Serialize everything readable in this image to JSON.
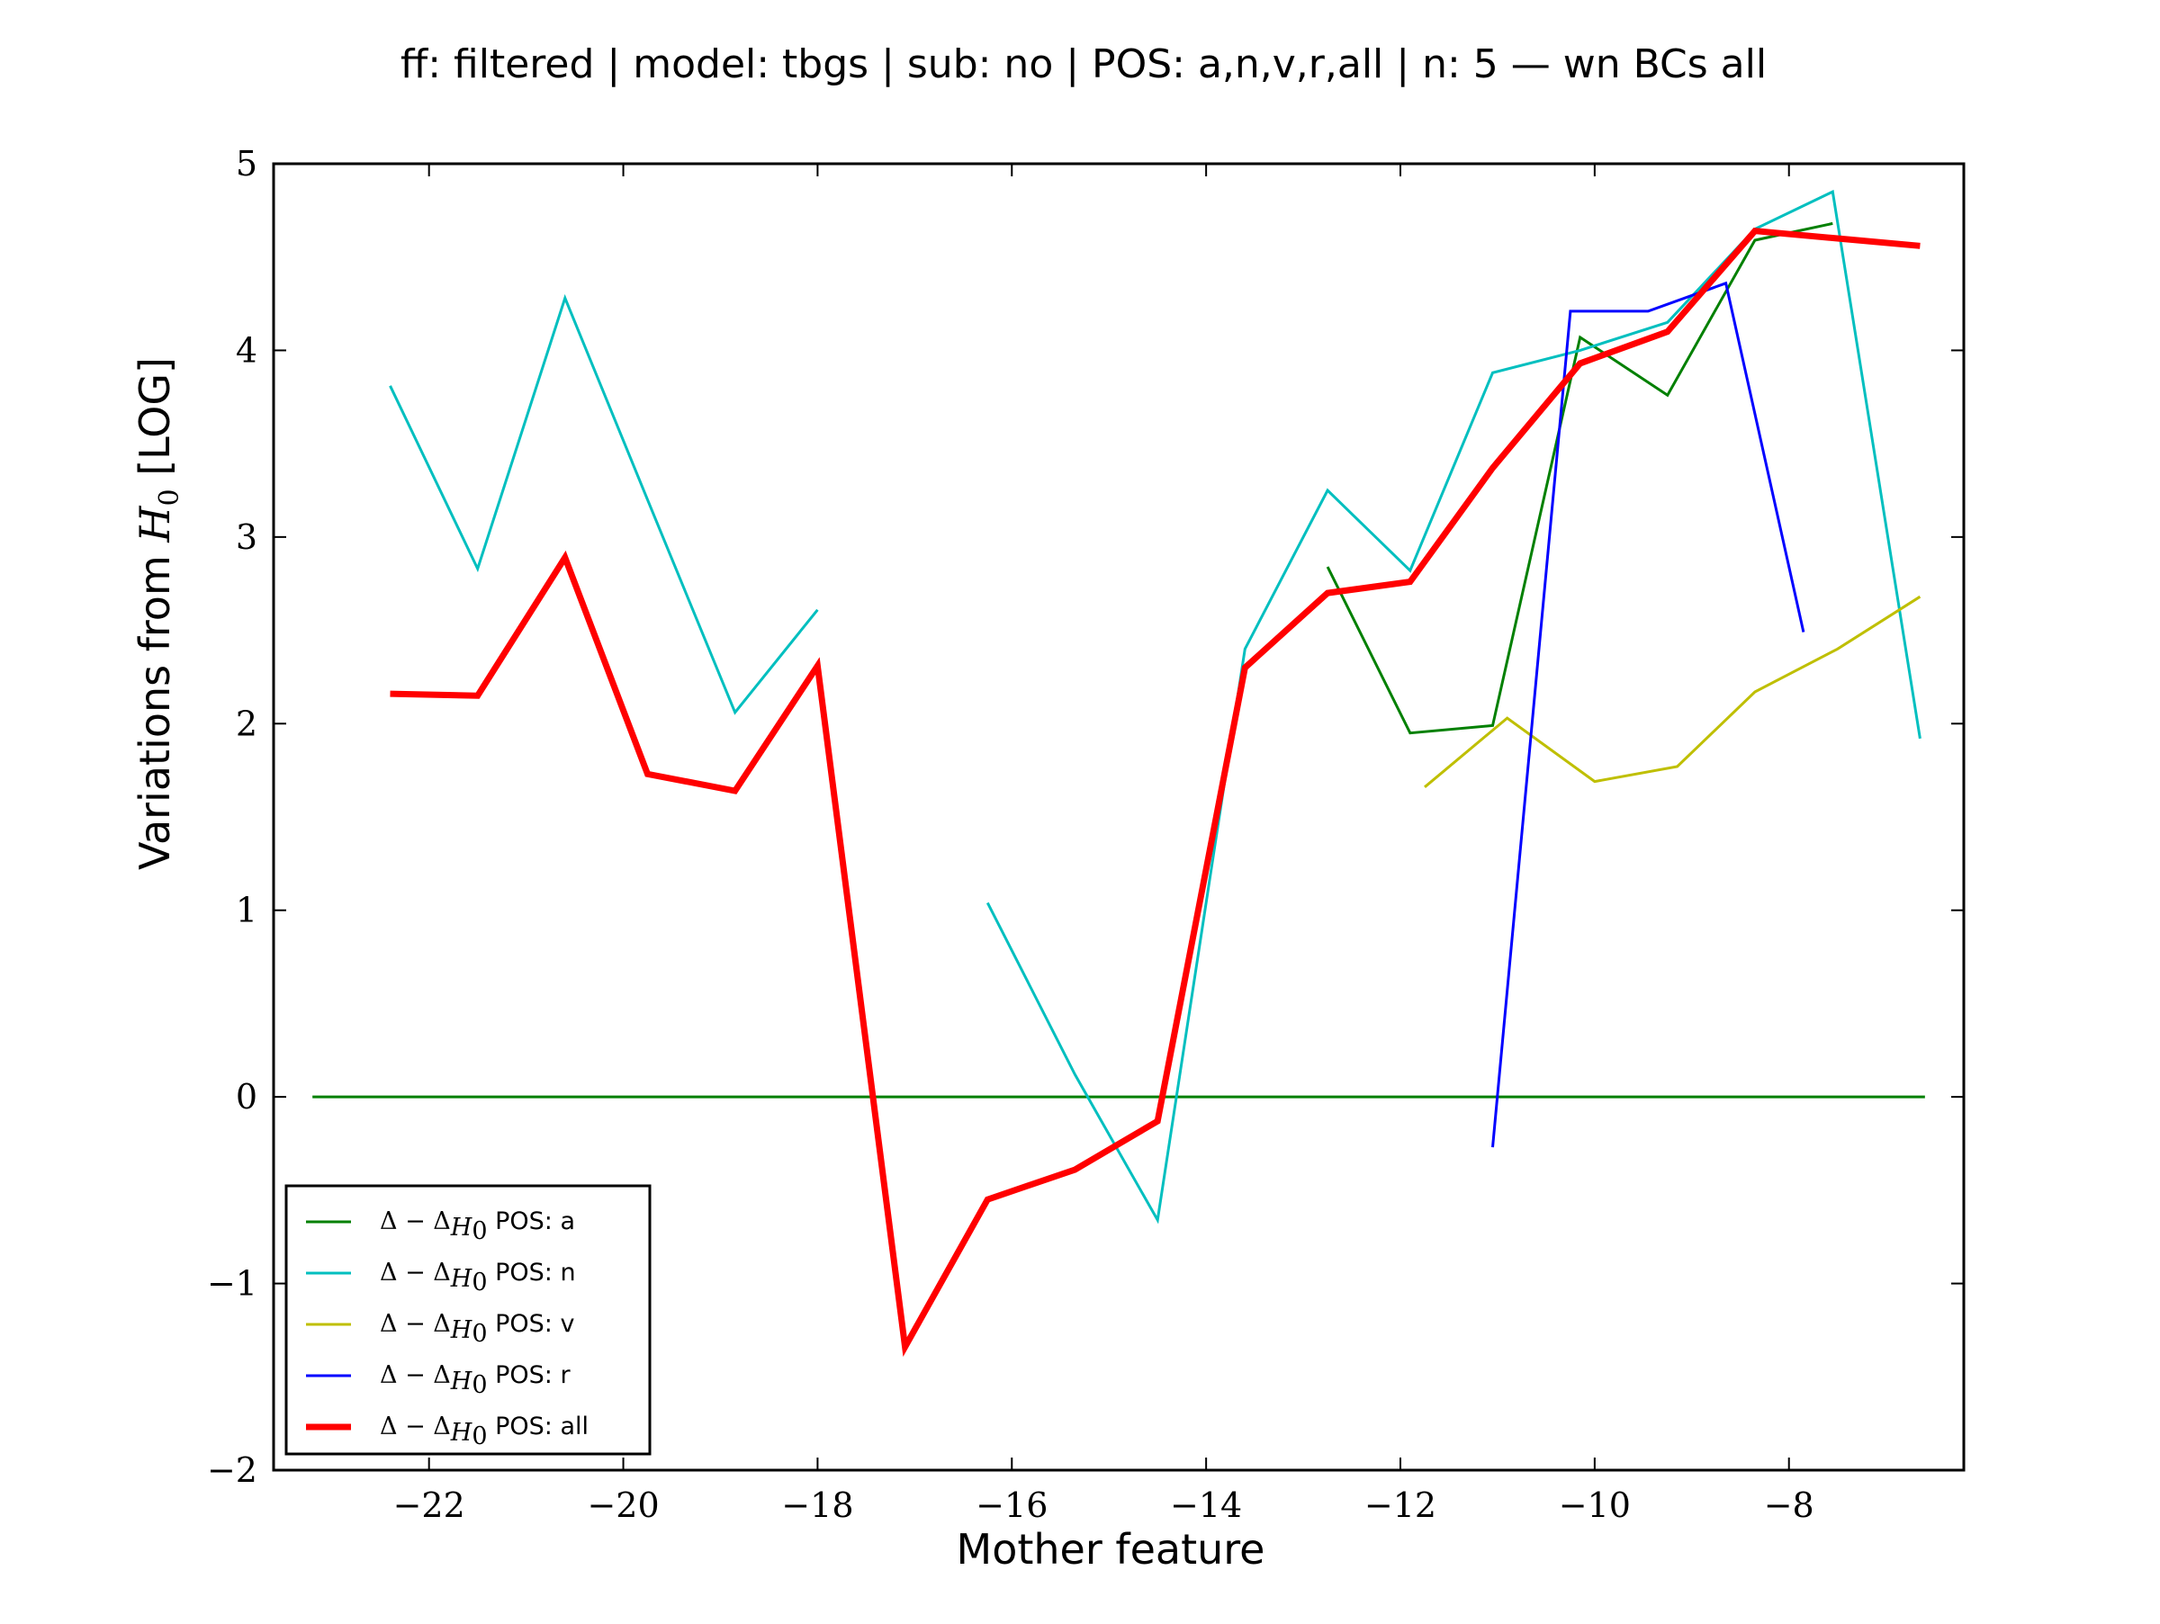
{
  "chart_data": {
    "type": "line",
    "title": "ff: filtered | model: tbgs | sub: no | POS: a,n,v,r,all | n: 5 — wn BCs all",
    "xlabel": "Mother feature",
    "ylabel_prefix": "Variations from ",
    "ylabel_math": "H",
    "ylabel_sub": "0",
    "ylabel_suffix": " [LOG]",
    "xlim": [
      -23.6,
      -6.2
    ],
    "ylim": [
      -2,
      5
    ],
    "xticks": [
      -22,
      -20,
      -18,
      -16,
      -14,
      -12,
      -10,
      -8
    ],
    "xtick_labels": [
      "−22",
      "−20",
      "−18",
      "−16",
      "−14",
      "−12",
      "−10",
      "−8"
    ],
    "yticks": [
      -2,
      -1,
      0,
      1,
      2,
      3,
      4,
      5
    ],
    "ytick_labels": [
      "−2",
      "−1",
      "0",
      "1",
      "2",
      "3",
      "4",
      "5"
    ],
    "grid": false,
    "legend_position": "lower-left",
    "zero_line": {
      "color": "#008000",
      "x": [
        -23.2,
        -6.6
      ],
      "y": [
        0,
        0
      ]
    },
    "series": [
      {
        "name": "Δ − ΔH0 POS: a",
        "legend_prefix": "Δ − Δ",
        "legend_sub": "H",
        "legend_subsub": "0",
        "legend_suffix": " POS: a",
        "color": "#008000",
        "width": 3,
        "x": [
          -12.75,
          -11.9,
          -11.05,
          -10.15,
          -9.25,
          -8.35,
          -7.55
        ],
        "y": [
          2.84,
          1.95,
          1.99,
          4.07,
          3.76,
          4.59,
          4.68
        ]
      },
      {
        "name": "Δ − ΔH0 POS: n",
        "legend_prefix": "Δ − Δ",
        "legend_sub": "H",
        "legend_subsub": "0",
        "legend_suffix": " POS: n",
        "color": "#00bfbf",
        "width": 3,
        "segments": [
          {
            "x": [
              -22.4,
              -21.5,
              -20.6,
              -19.75,
              -18.85,
              -18.0
            ],
            "y": [
              3.81,
              2.83,
              4.28,
              3.2,
              2.06,
              2.61
            ]
          },
          {
            "x": [
              -16.25,
              -15.35,
              -14.5,
              -13.6,
              -12.75,
              -11.9,
              -11.05,
              -10.15,
              -9.25,
              -8.35,
              -7.55,
              -6.65
            ],
            "y": [
              1.04,
              0.12,
              -0.66,
              2.4,
              3.25,
              2.82,
              3.88,
              4.0,
              4.15,
              4.65,
              4.85,
              1.92
            ]
          }
        ]
      },
      {
        "name": "Δ − ΔH0 POS: v",
        "legend_prefix": "Δ − Δ",
        "legend_sub": "H",
        "legend_subsub": "0",
        "legend_suffix": " POS: v",
        "color": "#bfbf00",
        "width": 3,
        "x": [
          -11.75,
          -10.9,
          -10.0,
          -9.15,
          -8.35,
          -7.5,
          -6.65
        ],
        "y": [
          1.66,
          2.03,
          1.69,
          1.77,
          2.17,
          2.4,
          2.68
        ]
      },
      {
        "name": "Δ − ΔH0 POS: r",
        "legend_prefix": "Δ − Δ",
        "legend_sub": "H",
        "legend_subsub": "0",
        "legend_suffix": " POS: r",
        "color": "#0000ff",
        "width": 3,
        "x": [
          -11.05,
          -10.25,
          -9.45,
          -8.65,
          -7.85
        ],
        "y": [
          -0.27,
          4.21,
          4.21,
          4.36,
          2.49
        ]
      },
      {
        "name": "Δ − ΔH0 POS: all",
        "legend_prefix": "Δ − Δ",
        "legend_sub": "H",
        "legend_subsub": "0",
        "legend_suffix": " POS: all",
        "color": "#ff0000",
        "width": 7,
        "x": [
          -22.4,
          -21.5,
          -20.6,
          -19.75,
          -18.85,
          -18.0,
          -17.1,
          -16.25,
          -15.35,
          -14.5,
          -13.6,
          -12.75,
          -11.9,
          -11.05,
          -10.15,
          -9.25,
          -8.35,
          -7.5,
          -6.65
        ],
        "y": [
          2.16,
          2.15,
          2.89,
          1.73,
          1.64,
          2.31,
          -1.34,
          -0.55,
          -0.39,
          -0.13,
          2.3,
          2.7,
          2.76,
          3.37,
          3.93,
          4.1,
          4.64,
          4.6,
          4.56
        ]
      }
    ]
  }
}
